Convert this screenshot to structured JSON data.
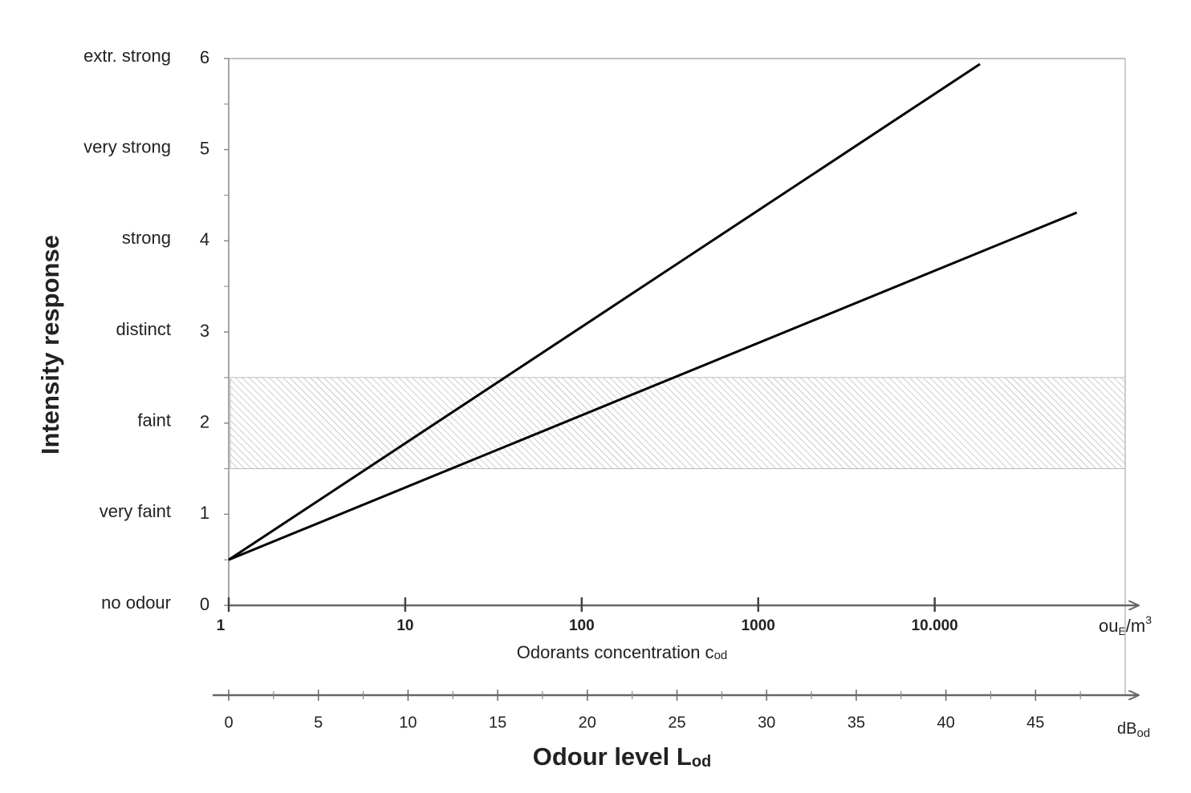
{
  "chart_data": {
    "type": "line",
    "xlim": [
      0,
      50
    ],
    "xticks": [
      0,
      5,
      10,
      15,
      20,
      25,
      30,
      35,
      40,
      45
    ],
    "x_minor_ticks": [
      2.5,
      7.5,
      12.5,
      17.5,
      22.5,
      27.5,
      32.5,
      37.5,
      42.5,
      47.5
    ],
    "x_label": {
      "text": "Odour level L",
      "sub": "od"
    },
    "x_unit": {
      "text": "dB",
      "sub": "od"
    },
    "x2_scale": "log",
    "x2lim": [
      1,
      120000
    ],
    "x2ticks": [
      1,
      10,
      100,
      1000,
      {
        "value": 10000,
        "label": "10.000"
      }
    ],
    "x2_label": {
      "text": "Odorants concentration c",
      "sub": "od"
    },
    "x2_unit": {
      "text": "ou",
      "sub": "E",
      "rest": "/m",
      "sup": "3"
    },
    "ylim": [
      0,
      6
    ],
    "yticks": [
      0,
      1,
      2,
      3,
      4,
      5,
      6
    ],
    "y_minor_ticks": [
      0.5,
      1.5,
      2.5,
      3.5,
      4.5,
      5.5
    ],
    "ytick_names": [
      "no odour",
      "very faint",
      "faint",
      "distinct",
      "strong",
      "very strong",
      "extr. strong"
    ],
    "y_label": "Intensity response",
    "band": [
      1.5,
      2.5
    ],
    "series": [
      {
        "color": "#000000",
        "x": [
          0,
          41.9
        ],
        "values": [
          0.5,
          5.94
        ]
      },
      {
        "color": "#000000",
        "x": [
          0,
          47.3
        ],
        "values": [
          0.5,
          4.31
        ]
      }
    ]
  }
}
